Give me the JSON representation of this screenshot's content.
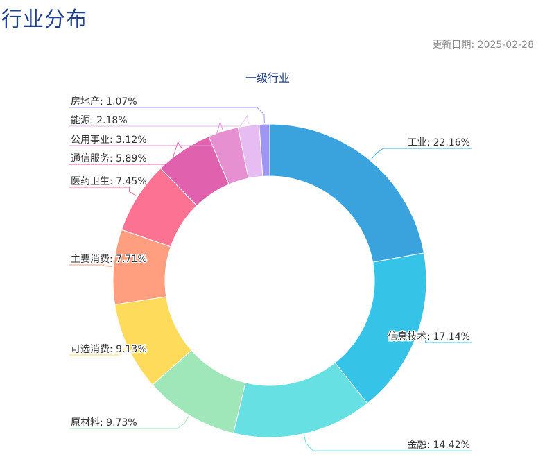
{
  "page": {
    "title": "行业分布",
    "update_label": "更新日期:",
    "update_date": "2025-02-28"
  },
  "chart_data": {
    "type": "pie",
    "style": "donut",
    "title": "一级行业",
    "unit": "%",
    "slices": [
      {
        "name": "工业",
        "value": 22.16,
        "color": "#3aa2dc",
        "label_side": "right"
      },
      {
        "name": "信息技术",
        "value": 17.14,
        "color": "#35c3e8",
        "label_side": "right"
      },
      {
        "name": "金融",
        "value": 14.42,
        "color": "#67e0e3",
        "label_side": "right"
      },
      {
        "name": "原材料",
        "value": 9.73,
        "color": "#9fe6b8",
        "label_side": "left"
      },
      {
        "name": "可选消费",
        "value": 9.13,
        "color": "#ffdb5c",
        "label_side": "left"
      },
      {
        "name": "主要消费",
        "value": 7.71,
        "color": "#ff9f7f",
        "label_side": "left"
      },
      {
        "name": "医药卫生",
        "value": 7.45,
        "color": "#fb7293",
        "label_side": "left"
      },
      {
        "name": "通信服务",
        "value": 5.89,
        "color": "#e062ae",
        "label_side": "left"
      },
      {
        "name": "公用事业",
        "value": 3.12,
        "color": "#e690d1",
        "label_side": "left"
      },
      {
        "name": "能源",
        "value": 2.18,
        "color": "#e7bcf3",
        "label_side": "left"
      },
      {
        "name": "房地产",
        "value": 1.07,
        "color": "#9d96f5",
        "label_side": "left"
      }
    ]
  }
}
